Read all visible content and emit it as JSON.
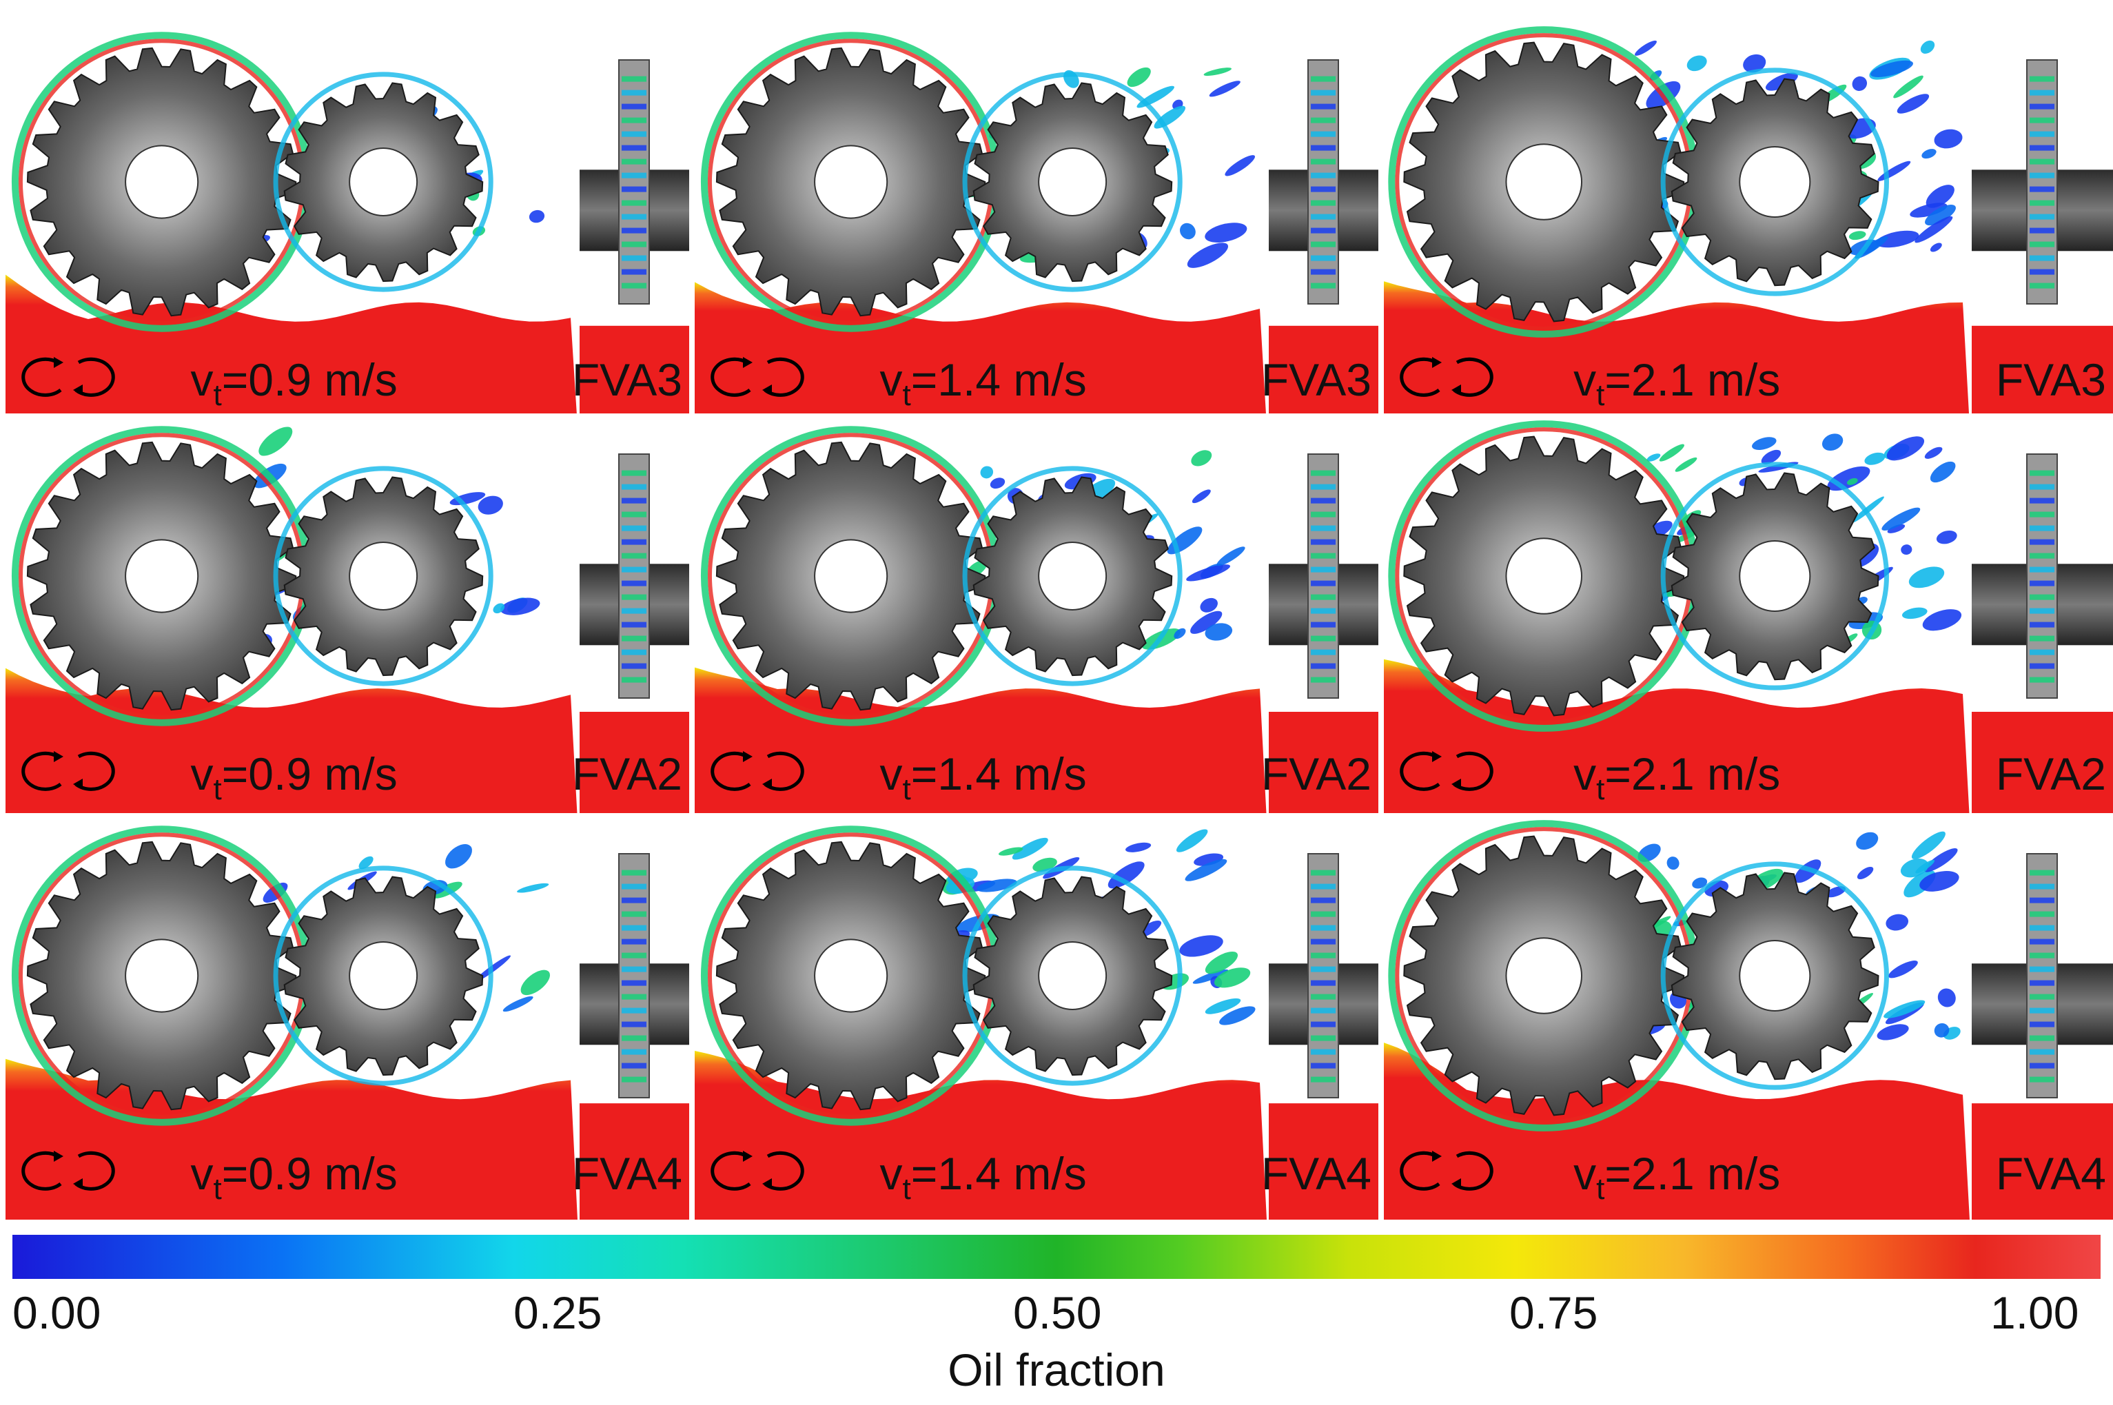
{
  "rows": [
    {
      "oil": "FVA3",
      "cells": [
        {
          "velocity": "=0.9 m/s"
        },
        {
          "velocity": "=1.4 m/s"
        },
        {
          "velocity": "=2.1 m/s"
        }
      ]
    },
    {
      "oil": "FVA2",
      "cells": [
        {
          "velocity": "=0.9 m/s"
        },
        {
          "velocity": "=1.4 m/s"
        },
        {
          "velocity": "=2.1 m/s"
        }
      ]
    },
    {
      "oil": "FVA4",
      "cells": [
        {
          "velocity": "=0.9 m/s"
        },
        {
          "velocity": "=1.4 m/s"
        },
        {
          "velocity": "=2.1 m/s"
        }
      ]
    }
  ],
  "velocity_symbol": "v",
  "velocity_subscript": "t",
  "colorbar": {
    "label": "Oil fraction",
    "ticks": [
      "0.00",
      "0.25",
      "0.50",
      "0.75",
      "1.00"
    ],
    "min": 0.0,
    "max": 1.0,
    "colors": [
      "#1a1ad9",
      "#12d6ea",
      "#20b428",
      "#f4e80a",
      "#e8261e"
    ]
  }
}
